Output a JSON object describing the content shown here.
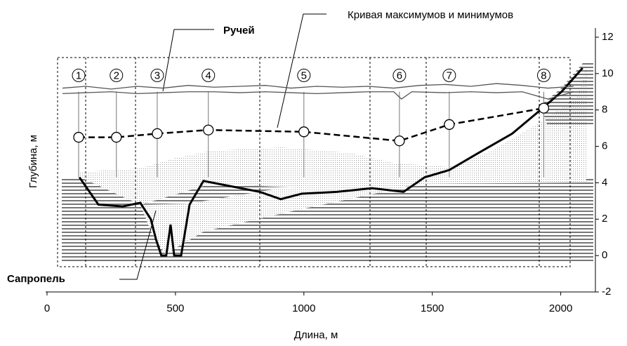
{
  "chart_data": {
    "type": "line",
    "xlabel": "Длина, м",
    "ylabel": "Глубина, м",
    "xlim": [
      0,
      2135
    ],
    "ylim": [
      -2,
      12.5
    ],
    "xticks": [
      0,
      500,
      1000,
      1500,
      2000
    ],
    "yticks": [
      -2,
      0,
      2,
      4,
      6,
      8,
      10,
      12
    ],
    "annotations": [
      "Ручей",
      "Кривая максимумов и минимумов",
      "Сапропель"
    ],
    "section_labels": [
      "1",
      "2",
      "3",
      "4",
      "5",
      "6",
      "7",
      "8"
    ],
    "series": [
      {
        "color": "#000000",
        "linestyle": "solid",
        "x": [
          126,
          200,
          295,
          363,
          404,
          424,
          445,
          464,
          481,
          495,
          522,
          555,
          609,
          719,
          828,
          910,
          992,
          1128,
          1265,
          1388,
          1470,
          1566,
          1675,
          1811,
          1921,
          2003,
          2085
        ],
        "values": [
          4.3,
          2.8,
          2.7,
          2.9,
          2.0,
          0.9,
          0.0,
          0.0,
          1.7,
          0.0,
          0.0,
          2.8,
          4.1,
          3.8,
          3.5,
          3.1,
          3.4,
          3.5,
          3.7,
          3.5,
          4.3,
          4.7,
          5.6,
          6.7,
          8.0,
          9.0,
          10.3
        ]
      },
      {
        "color": "#000000",
        "linestyle": "dashed",
        "marker": "circle",
        "x": [
          123,
          270,
          429,
          628,
          1000,
          1372,
          1566,
          1934
        ],
        "values": [
          6.5,
          6.5,
          6.7,
          6.9,
          6.8,
          6.3,
          7.2,
          8.1
        ]
      },
      {
        "color": "#555555",
        "linestyle": "solid",
        "x": [
          60,
          150,
          250,
          350,
          450,
          550,
          650,
          750,
          850,
          950,
          1050,
          1150,
          1250,
          1350,
          1450,
          1550,
          1650,
          1750,
          1850,
          1950,
          2050
        ],
        "values": [
          9.2,
          9.3,
          9.15,
          9.3,
          9.2,
          9.35,
          9.25,
          9.3,
          9.35,
          9.2,
          9.3,
          9.25,
          9.3,
          9.2,
          9.35,
          9.4,
          9.3,
          9.45,
          9.35,
          9.2,
          9.3
        ]
      },
      {
        "color": "#555555",
        "linestyle": "solid",
        "x": [
          60,
          150,
          250,
          350,
          450,
          550,
          650,
          750,
          850,
          950,
          1050,
          1150,
          1250,
          1350,
          1380,
          1420,
          1550,
          1650,
          1750,
          1850,
          1950,
          2050
        ],
        "values": [
          8.9,
          8.95,
          9.0,
          8.9,
          8.95,
          9.0,
          9.0,
          8.95,
          9.0,
          8.95,
          8.9,
          8.95,
          9.0,
          9.0,
          8.6,
          9.0,
          8.95,
          9.0,
          8.95,
          9.0,
          8.6,
          9.0
        ]
      }
    ]
  }
}
